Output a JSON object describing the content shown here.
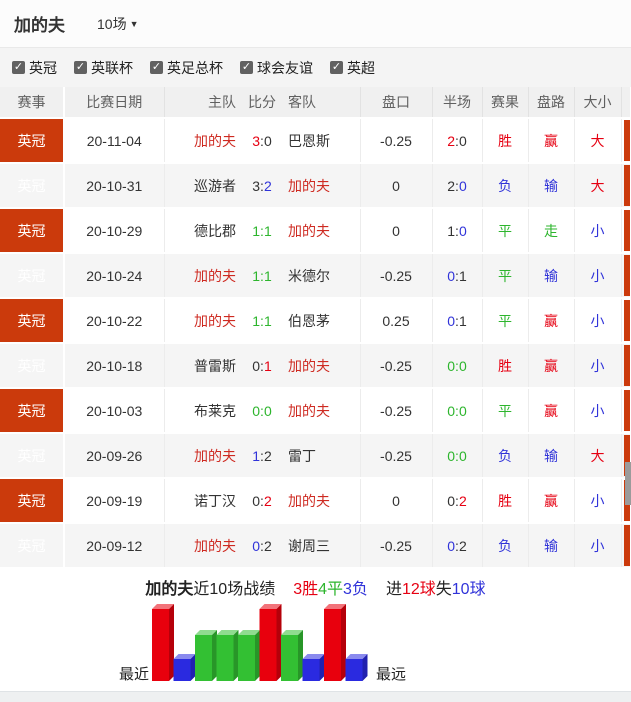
{
  "header": {
    "team": "加的夫",
    "match_count": "10场",
    "dropdown_arrow": "▼"
  },
  "filters": [
    {
      "label": "英冠",
      "checked": true
    },
    {
      "label": "英联杯",
      "checked": true
    },
    {
      "label": "英足总杯",
      "checked": true
    },
    {
      "label": "球会友谊",
      "checked": true
    },
    {
      "label": "英超",
      "checked": true
    }
  ],
  "checkmark": "✓",
  "colors": {
    "red": "#e60012",
    "green": "#2db52d",
    "blue": "#3033d9",
    "team": "#ce2a21",
    "plain": "#333333",
    "badge": "#cb3a0c"
  },
  "table": {
    "columns": [
      "赛事",
      "比赛日期",
      "主队",
      "比分",
      "客队",
      "盘口",
      "半场",
      "赛果",
      "盘路",
      "大小"
    ],
    "rows": [
      {
        "league": "英冠",
        "date": "20-11-04",
        "home": {
          "name": "加的夫",
          "color": "team"
        },
        "score": [
          [
            "3",
            "red"
          ],
          [
            ":",
            "plain"
          ],
          [
            "0",
            "plain"
          ]
        ],
        "away": {
          "name": "巴恩斯",
          "color": "plain"
        },
        "handicap": "-0.25",
        "half": [
          [
            "2",
            "red"
          ],
          [
            ":",
            "plain"
          ],
          [
            "0",
            "plain"
          ]
        ],
        "result": [
          "胜",
          "red"
        ],
        "trend": [
          "赢",
          "red"
        ],
        "bigsmall": [
          "大",
          "red"
        ]
      },
      {
        "league": "英冠",
        "date": "20-10-31",
        "home": {
          "name": "巡游者",
          "color": "plain"
        },
        "score": [
          [
            "3",
            "plain"
          ],
          [
            ":",
            "plain"
          ],
          [
            "2",
            "blue"
          ]
        ],
        "away": {
          "name": "加的夫",
          "color": "team"
        },
        "handicap": "0",
        "half": [
          [
            "2",
            "plain"
          ],
          [
            ":",
            "plain"
          ],
          [
            "0",
            "blue"
          ]
        ],
        "result": [
          "负",
          "blue"
        ],
        "trend": [
          "输",
          "blue"
        ],
        "bigsmall": [
          "大",
          "red"
        ]
      },
      {
        "league": "英冠",
        "date": "20-10-29",
        "home": {
          "name": "德比郡",
          "color": "plain"
        },
        "score": [
          [
            "1",
            "green"
          ],
          [
            ":",
            "green"
          ],
          [
            "1",
            "green"
          ]
        ],
        "away": {
          "name": "加的夫",
          "color": "team"
        },
        "handicap": "0",
        "half": [
          [
            "1",
            "plain"
          ],
          [
            ":",
            "plain"
          ],
          [
            "0",
            "blue"
          ]
        ],
        "result": [
          "平",
          "green"
        ],
        "trend": [
          "走",
          "green"
        ],
        "bigsmall": [
          "小",
          "blue"
        ]
      },
      {
        "league": "英冠",
        "date": "20-10-24",
        "home": {
          "name": "加的夫",
          "color": "team"
        },
        "score": [
          [
            "1",
            "green"
          ],
          [
            ":",
            "green"
          ],
          [
            "1",
            "green"
          ]
        ],
        "away": {
          "name": "米德尔",
          "color": "plain"
        },
        "handicap": "-0.25",
        "half": [
          [
            "0",
            "blue"
          ],
          [
            ":",
            "plain"
          ],
          [
            "1",
            "plain"
          ]
        ],
        "result": [
          "平",
          "green"
        ],
        "trend": [
          "输",
          "blue"
        ],
        "bigsmall": [
          "小",
          "blue"
        ]
      },
      {
        "league": "英冠",
        "date": "20-10-22",
        "home": {
          "name": "加的夫",
          "color": "team"
        },
        "score": [
          [
            "1",
            "green"
          ],
          [
            ":",
            "green"
          ],
          [
            "1",
            "green"
          ]
        ],
        "away": {
          "name": "伯恩茅",
          "color": "plain"
        },
        "handicap": "0.25",
        "half": [
          [
            "0",
            "blue"
          ],
          [
            ":",
            "plain"
          ],
          [
            "1",
            "plain"
          ]
        ],
        "result": [
          "平",
          "green"
        ],
        "trend": [
          "赢",
          "red"
        ],
        "bigsmall": [
          "小",
          "blue"
        ]
      },
      {
        "league": "英冠",
        "date": "20-10-18",
        "home": {
          "name": "普雷斯",
          "color": "plain"
        },
        "score": [
          [
            "0",
            "plain"
          ],
          [
            ":",
            "plain"
          ],
          [
            "1",
            "red"
          ]
        ],
        "away": {
          "name": "加的夫",
          "color": "team"
        },
        "handicap": "-0.25",
        "half": [
          [
            "0",
            "green"
          ],
          [
            ":",
            "green"
          ],
          [
            "0",
            "green"
          ]
        ],
        "result": [
          "胜",
          "red"
        ],
        "trend": [
          "赢",
          "red"
        ],
        "bigsmall": [
          "小",
          "blue"
        ]
      },
      {
        "league": "英冠",
        "date": "20-10-03",
        "home": {
          "name": "布莱克",
          "color": "plain"
        },
        "score": [
          [
            "0",
            "green"
          ],
          [
            ":",
            "green"
          ],
          [
            "0",
            "green"
          ]
        ],
        "away": {
          "name": "加的夫",
          "color": "team"
        },
        "handicap": "-0.25",
        "half": [
          [
            "0",
            "green"
          ],
          [
            ":",
            "green"
          ],
          [
            "0",
            "green"
          ]
        ],
        "result": [
          "平",
          "green"
        ],
        "trend": [
          "赢",
          "red"
        ],
        "bigsmall": [
          "小",
          "blue"
        ]
      },
      {
        "league": "英冠",
        "date": "20-09-26",
        "home": {
          "name": "加的夫",
          "color": "team"
        },
        "score": [
          [
            "1",
            "blue"
          ],
          [
            ":",
            "plain"
          ],
          [
            "2",
            "plain"
          ]
        ],
        "away": {
          "name": "雷丁",
          "color": "plain"
        },
        "handicap": "-0.25",
        "half": [
          [
            "0",
            "green"
          ],
          [
            ":",
            "green"
          ],
          [
            "0",
            "green"
          ]
        ],
        "result": [
          "负",
          "blue"
        ],
        "trend": [
          "输",
          "blue"
        ],
        "bigsmall": [
          "大",
          "red"
        ]
      },
      {
        "league": "英冠",
        "date": "20-09-19",
        "home": {
          "name": "诺丁汉",
          "color": "plain"
        },
        "score": [
          [
            "0",
            "plain"
          ],
          [
            ":",
            "plain"
          ],
          [
            "2",
            "red"
          ]
        ],
        "away": {
          "name": "加的夫",
          "color": "team"
        },
        "handicap": "0",
        "half": [
          [
            "0",
            "plain"
          ],
          [
            ":",
            "plain"
          ],
          [
            "2",
            "red"
          ]
        ],
        "result": [
          "胜",
          "red"
        ],
        "trend": [
          "赢",
          "red"
        ],
        "bigsmall": [
          "小",
          "blue"
        ]
      },
      {
        "league": "英冠",
        "date": "20-09-12",
        "home": {
          "name": "加的夫",
          "color": "team"
        },
        "score": [
          [
            "0",
            "blue"
          ],
          [
            ":",
            "plain"
          ],
          [
            "2",
            "plain"
          ]
        ],
        "away": {
          "name": "谢周三",
          "color": "plain"
        },
        "handicap": "-0.25",
        "half": [
          [
            "0",
            "blue"
          ],
          [
            ":",
            "plain"
          ],
          [
            "2",
            "plain"
          ]
        ],
        "result": [
          "负",
          "blue"
        ],
        "trend": [
          "输",
          "blue"
        ],
        "bigsmall": [
          "小",
          "blue"
        ]
      }
    ]
  },
  "summary": {
    "team": "加的夫",
    "suffix": "近10场战绩",
    "wins": "3胜",
    "draws": "4平",
    "losses": "3负",
    "goals_for_prefix": "进",
    "goals_for": "12球",
    "goals_against_prefix": "失",
    "goals_against": "10球"
  },
  "chart_data": {
    "type": "bar",
    "title": "加的夫近10场战绩 3胜4平3负 进12球失10球",
    "results": [
      "胜",
      "负",
      "平",
      "平",
      "平",
      "胜",
      "平",
      "负",
      "胜",
      "负"
    ],
    "values": [
      3,
      1,
      2,
      2,
      2,
      3,
      2,
      1,
      3,
      1
    ],
    "value_meaning": {
      "3": "win",
      "2": "draw",
      "1": "loss"
    },
    "left_label": "最近",
    "right_label": "最远",
    "legend_position": "none",
    "colors": {
      "win": "#e8000d",
      "draw": "#33c033",
      "loss": "#2a2ae0"
    }
  }
}
